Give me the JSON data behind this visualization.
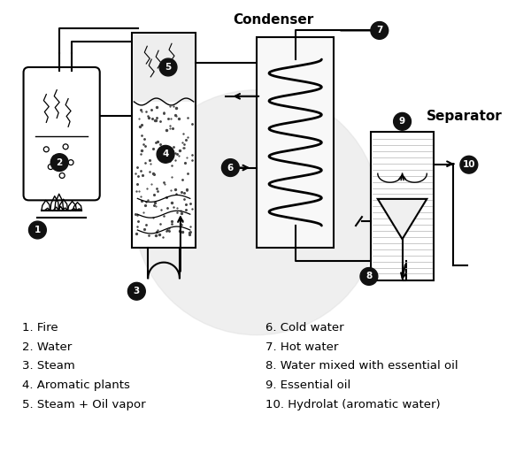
{
  "background_color": "#ffffff",
  "line_color": "#000000",
  "circle_fill": "#111111",
  "circle_text": "#ffffff",
  "legend_left": [
    "1. Fire",
    "2. Water",
    "3. Steam",
    "4. Aromatic plants",
    "5. Steam + Oil vapor"
  ],
  "legend_right": [
    "6. Cold water",
    "7. Hot water",
    "8. Water mixed with essential oil",
    "9. Essential oil",
    "10. Hydrolat (aromatic water)"
  ],
  "condenser_label": "Condenser",
  "separator_label": "Separator",
  "figsize": [
    6.0,
    5.2
  ],
  "dpi": 100
}
